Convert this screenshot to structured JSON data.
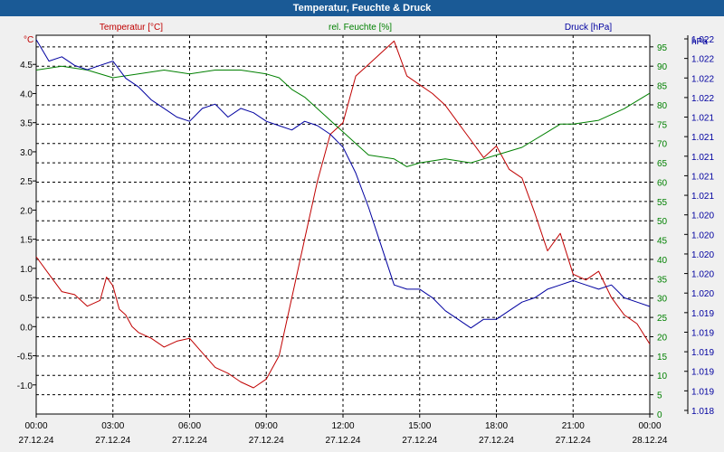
{
  "title": "Temperatur, Feuchte & Druck",
  "chart_data": {
    "type": "line",
    "title": "Temperatur, Feuchte & Druck",
    "x_ticks": [
      {
        "time": "00:00",
        "date": "27.12.24"
      },
      {
        "time": "03:00",
        "date": "27.12.24"
      },
      {
        "time": "06:00",
        "date": "27.12.24"
      },
      {
        "time": "09:00",
        "date": "27.12.24"
      },
      {
        "time": "12:00",
        "date": "27.12.24"
      },
      {
        "time": "15:00",
        "date": "27.12.24"
      },
      {
        "time": "18:00",
        "date": "27.12.24"
      },
      {
        "time": "21:00",
        "date": "27.12.24"
      },
      {
        "time": "00:00",
        "date": "28.12.24"
      }
    ],
    "x_range_hours": [
      0,
      24
    ],
    "axes": {
      "temperature": {
        "label": "Temperatur [°C]",
        "unit": "°C",
        "color": "#c00000",
        "range": [
          -1.5,
          5.0
        ],
        "ticks": [
          "-1.0",
          "-0.5",
          "0.0",
          "0.5",
          "1.0",
          "1.5",
          "2.0",
          "2.5",
          "3.0",
          "3.5",
          "4.0",
          "4.5"
        ]
      },
      "humidity": {
        "label": "rel. Feuchte [%]",
        "unit": "%",
        "color": "#008000",
        "range": [
          0,
          98
        ],
        "ticks": [
          "0",
          "5",
          "10",
          "15",
          "20",
          "25",
          "30",
          "35",
          "40",
          "45",
          "50",
          "55",
          "60",
          "65",
          "70",
          "75",
          "80",
          "85",
          "90",
          "95"
        ]
      },
      "pressure": {
        "label": "Druck [hPa]",
        "unit": "hPa",
        "color": "#0000a0",
        "range": [
          1018.0,
          1022.4
        ],
        "ticks": [
          "1.018",
          "1.019",
          "1.019",
          "1.019",
          "1.019",
          "1.019",
          "1.020",
          "1.020",
          "1.020",
          "1.020",
          "1.020",
          "1.021",
          "1.021",
          "1.021",
          "1.021",
          "1.021",
          "1.022",
          "1.022",
          "1.022",
          "1.022"
        ]
      }
    },
    "series": [
      {
        "name": "Temperatur [°C]",
        "axis": "temperature",
        "color": "#c00000",
        "x": [
          0,
          0.5,
          1,
          1.5,
          2,
          2.5,
          2.75,
          3,
          3.25,
          3.5,
          3.75,
          4,
          4.5,
          5,
          5.5,
          6,
          6.5,
          7,
          7.5,
          8,
          8.5,
          9,
          9.5,
          10,
          10.5,
          11,
          11.5,
          12,
          12.5,
          13,
          13.5,
          14,
          14.5,
          15,
          15.5,
          16,
          16.5,
          17,
          17.5,
          18,
          18.5,
          19,
          19.5,
          20,
          20.5,
          21,
          21.5,
          22,
          22.5,
          23,
          23.5,
          24
        ],
        "values": [
          1.2,
          0.9,
          0.6,
          0.55,
          0.35,
          0.45,
          0.85,
          0.7,
          0.3,
          0.2,
          0.0,
          -0.1,
          -0.2,
          -0.35,
          -0.25,
          -0.2,
          -0.45,
          -0.7,
          -0.8,
          -0.95,
          -1.05,
          -0.9,
          -0.5,
          0.5,
          1.5,
          2.5,
          3.3,
          3.5,
          4.3,
          4.5,
          4.7,
          4.9,
          4.3,
          4.15,
          4.0,
          3.8,
          3.5,
          3.2,
          2.9,
          3.1,
          2.7,
          2.55,
          1.95,
          1.3,
          1.6,
          0.9,
          0.8,
          0.95,
          0.5,
          0.2,
          0.05,
          -0.3
        ]
      },
      {
        "name": "rel. Feuchte [%]",
        "axis": "humidity",
        "color": "#008000",
        "x": [
          0,
          1,
          2,
          3,
          4,
          5,
          6,
          7,
          8,
          9,
          9.5,
          10,
          10.5,
          11,
          11.5,
          12,
          12.5,
          13,
          14,
          14.5,
          15,
          16,
          17,
          17.5,
          18,
          19,
          20,
          20.5,
          21,
          22,
          23,
          24
        ],
        "values": [
          89,
          90,
          89,
          87,
          88,
          89,
          88,
          89,
          89,
          88,
          87,
          84,
          82,
          79,
          76,
          73,
          70,
          67,
          66,
          64,
          65,
          66,
          65,
          66,
          67,
          69,
          73,
          75,
          75,
          76,
          79,
          83
        ]
      },
      {
        "name": "Druck [hPa]",
        "axis": "pressure",
        "color": "#0000a0",
        "x": [
          0,
          0.5,
          1,
          1.5,
          2,
          2.5,
          3,
          3.5,
          4,
          4.5,
          5,
          5.5,
          6,
          6.5,
          7,
          7.5,
          8,
          8.5,
          9,
          9.5,
          10,
          10.5,
          11,
          11.5,
          12,
          12.5,
          13,
          13.5,
          14,
          14.5,
          15,
          15.5,
          16,
          16.5,
          17,
          17.5,
          18,
          18.5,
          19,
          19.5,
          20,
          20.5,
          21,
          21.5,
          22,
          22.5,
          23,
          23.5,
          24
        ],
        "values": [
          1022.35,
          1022.1,
          1022.15,
          1022.05,
          1022.0,
          1022.05,
          1022.1,
          1021.9,
          1021.8,
          1021.65,
          1021.55,
          1021.45,
          1021.4,
          1021.55,
          1021.6,
          1021.45,
          1021.55,
          1021.5,
          1021.4,
          1021.35,
          1021.3,
          1021.4,
          1021.35,
          1021.25,
          1021.1,
          1020.8,
          1020.4,
          1019.95,
          1019.5,
          1019.45,
          1019.45,
          1019.35,
          1019.2,
          1019.1,
          1019.0,
          1019.1,
          1019.1,
          1019.2,
          1019.3,
          1019.35,
          1019.45,
          1019.5,
          1019.55,
          1019.5,
          1019.45,
          1019.5,
          1019.35,
          1019.3,
          1019.25
        ]
      }
    ]
  }
}
